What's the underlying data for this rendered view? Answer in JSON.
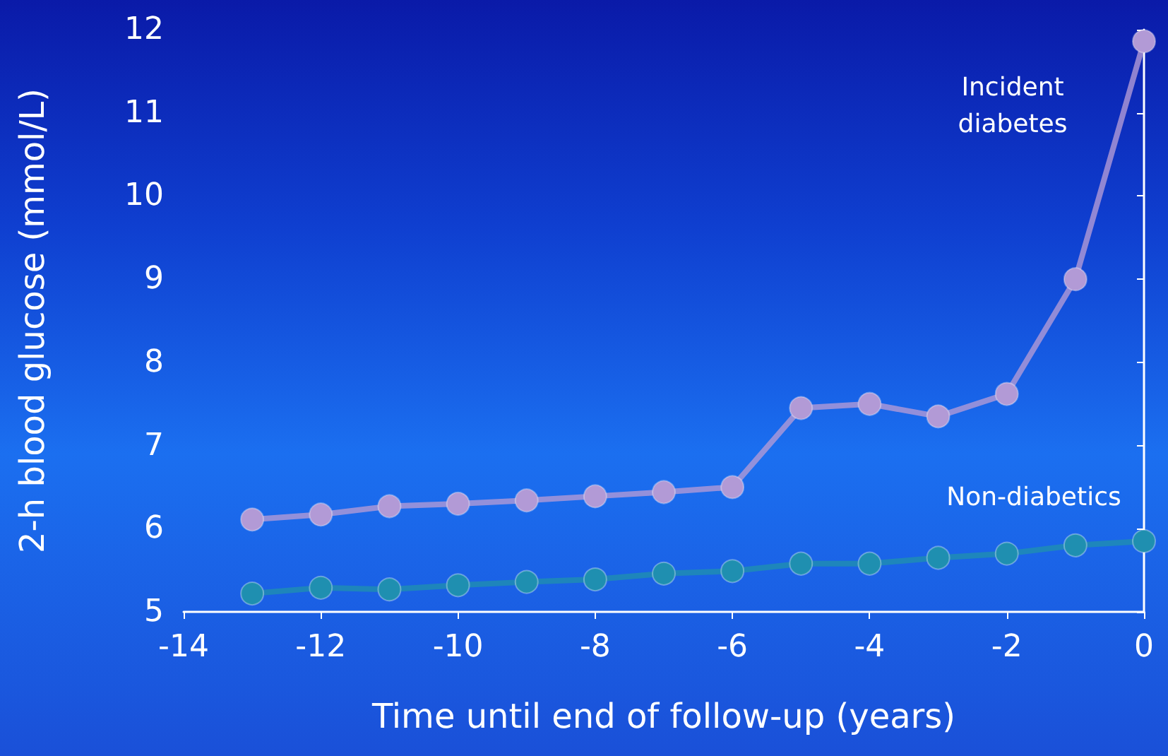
{
  "chart_data": {
    "type": "line",
    "xlabel": "Time until end of follow-up (years)",
    "ylabel": "2-h blood glucose (mmol/L)",
    "x": [
      -13,
      -12,
      -11,
      -10,
      -9,
      -8,
      -7,
      -6,
      -5,
      -4,
      -3,
      -2,
      -1,
      0
    ],
    "series": [
      {
        "name": "Incident diabetes",
        "color": "#b29ad6",
        "values": [
          6.11,
          6.17,
          6.27,
          6.3,
          6.34,
          6.39,
          6.44,
          6.5,
          7.45,
          7.5,
          7.35,
          7.62,
          9.0,
          11.86
        ]
      },
      {
        "name": "Non-diabetics",
        "color": "#1f8fb0",
        "values": [
          5.22,
          5.29,
          5.27,
          5.32,
          5.36,
          5.39,
          5.46,
          5.49,
          5.58,
          5.58,
          5.65,
          5.7,
          5.8,
          5.85
        ]
      }
    ],
    "xlim": [
      -14,
      0
    ],
    "xticks": [
      -14,
      -12,
      -10,
      -8,
      -6,
      -4,
      -2,
      0
    ],
    "ylim": [
      5,
      12
    ],
    "yticks": [
      5,
      6,
      7,
      8,
      9,
      10,
      11,
      12
    ],
    "grid": false,
    "legend": false,
    "marker": "circle",
    "line_style": "solid"
  }
}
